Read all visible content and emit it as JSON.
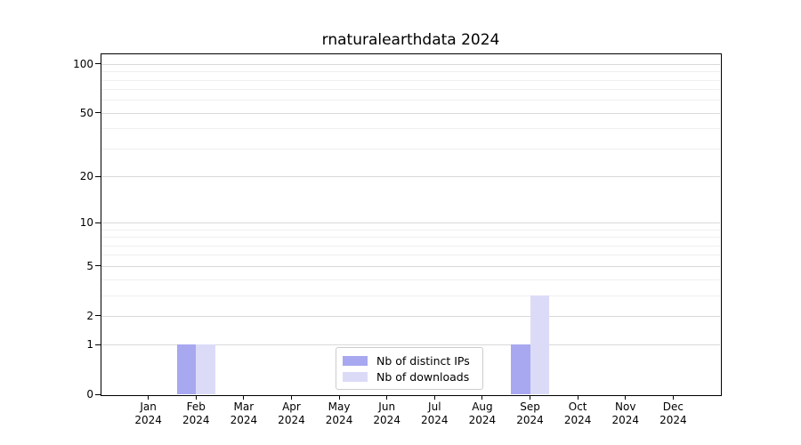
{
  "figure": {
    "background": "#ffffff"
  },
  "chart_data": {
    "type": "bar",
    "title": "rnaturalearthdata 2024",
    "xlabel": "",
    "ylabel": "",
    "categories": [
      "Jan 2024",
      "Feb 2024",
      "Mar 2024",
      "Apr 2024",
      "May 2024",
      "Jun 2024",
      "Jul 2024",
      "Aug 2024",
      "Sep 2024",
      "Oct 2024",
      "Nov 2024",
      "Dec 2024"
    ],
    "series": [
      {
        "name": "Nb of distinct IPs",
        "color": "#a8a8f0",
        "values": [
          0,
          1,
          0,
          0,
          0,
          0,
          0,
          0,
          1,
          0,
          0,
          0
        ]
      },
      {
        "name": "Nb of downloads",
        "color": "#dbdbf8",
        "values": [
          0,
          1,
          0,
          0,
          0,
          0,
          0,
          0,
          3,
          0,
          0,
          0
        ]
      }
    ],
    "y_scale": "log1p",
    "ylim": [
      0,
      116
    ],
    "y_ticks": [
      0,
      1,
      2,
      5,
      10,
      20,
      50,
      100
    ],
    "y_minor_ticks": [
      3,
      4,
      6,
      7,
      8,
      9,
      30,
      40,
      60,
      70,
      80,
      90
    ],
    "grid": true,
    "legend_position": "lower center",
    "colors": {
      "major_grid": "#d9d9d9",
      "minor_grid": "#efefef",
      "axis": "#000000",
      "text": "#000000"
    }
  }
}
